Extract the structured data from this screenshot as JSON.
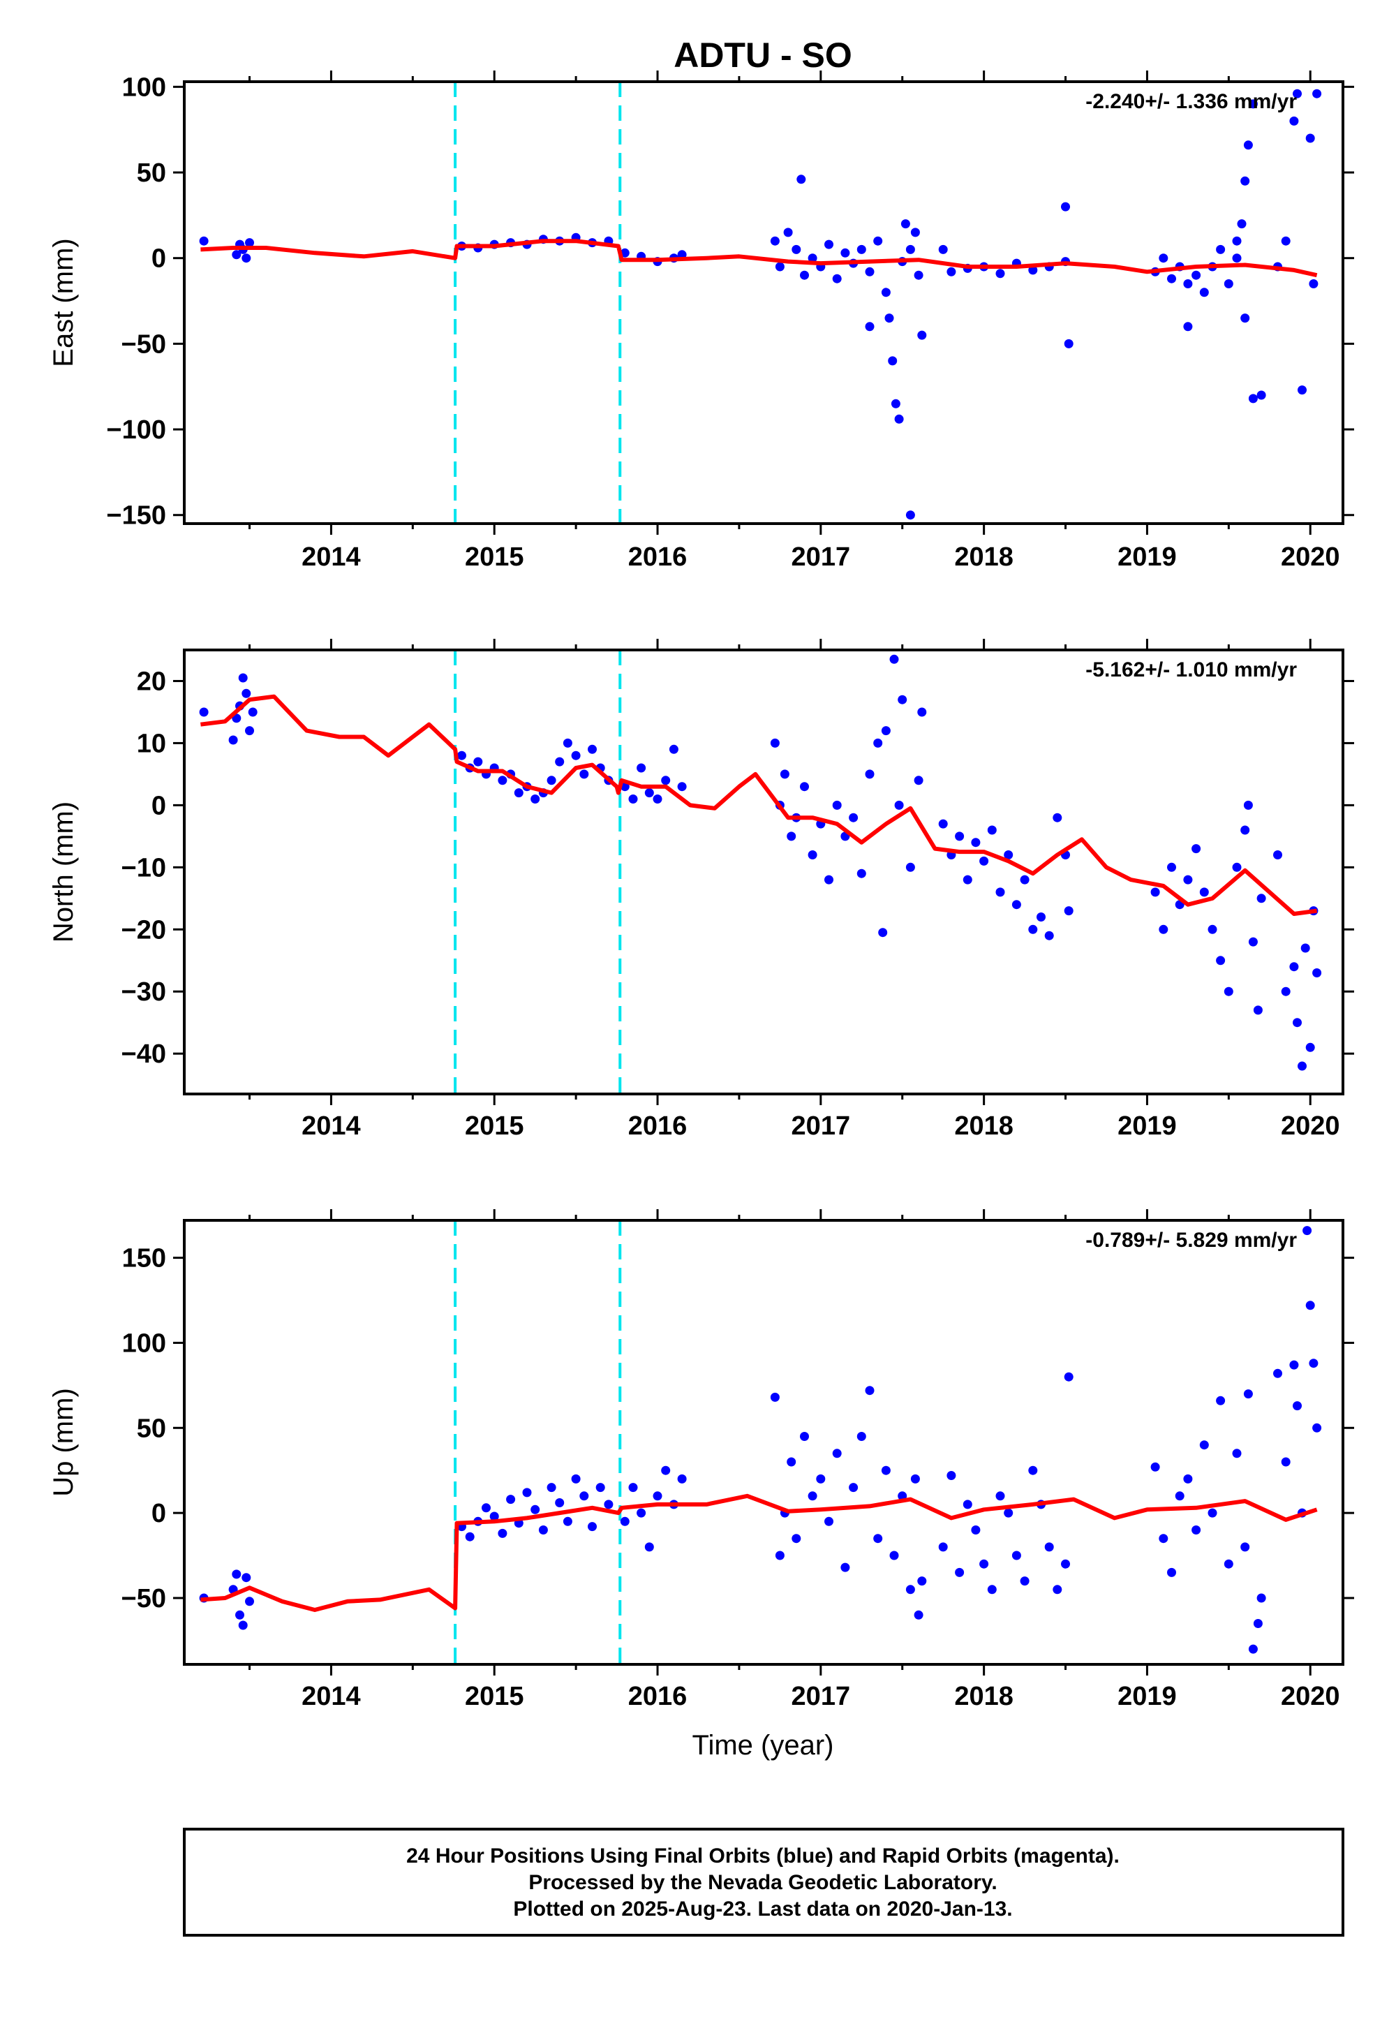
{
  "chart_data": {
    "type": "scatter",
    "title": "ADTU - SO",
    "xlabel": "Time (year)",
    "xlim": [
      2013.1,
      2020.2
    ],
    "x_ticks": [
      2014,
      2015,
      2016,
      2017,
      2018,
      2019,
      2020
    ],
    "x_tick_labels": [
      "2014",
      "2015",
      "2016",
      "2017",
      "2018",
      "2019",
      "2020"
    ],
    "equipment_changes": [
      2014.76,
      2015.77
    ],
    "colors": {
      "data_points": "#0000ff",
      "model_line": "#ff0000",
      "offset_lines": "#00e5ee"
    },
    "panels": [
      {
        "name": "east",
        "ylabel": "East (mm)",
        "ylim": [
          -155,
          103
        ],
        "y_ticks": [
          100,
          50,
          0,
          -50,
          -100,
          -150
        ],
        "y_tick_labels": [
          "100",
          "50",
          "0",
          "−50",
          "−100",
          "−150"
        ],
        "rate": "-2.240+/- 1.336 mm/yr",
        "model": {
          "x": [
            2013.2,
            2013.4,
            2013.6,
            2013.9,
            2014.2,
            2014.5,
            2014.76,
            2014.77,
            2015.0,
            2015.3,
            2015.5,
            2015.76,
            2015.78,
            2016.0,
            2016.3,
            2016.5,
            2016.8,
            2017.0,
            2017.3,
            2017.6,
            2017.9,
            2018.2,
            2018.5,
            2018.8,
            2019.0,
            2019.3,
            2019.6,
            2019.9,
            2020.04
          ],
          "y": [
            5,
            6,
            6,
            3,
            1,
            4,
            0,
            7,
            7,
            10,
            10,
            7,
            -1,
            -1,
            0,
            1,
            -2,
            -3,
            -2,
            -1,
            -5,
            -5,
            -3,
            -5,
            -8,
            -5,
            -4,
            -7,
            -10
          ]
        },
        "points": {
          "x": [
            2013.22,
            2013.42,
            2013.44,
            2013.46,
            2013.48,
            2013.5,
            2014.8,
            2014.9,
            2015.0,
            2015.1,
            2015.2,
            2015.3,
            2015.4,
            2015.5,
            2015.6,
            2015.7,
            2015.8,
            2015.9,
            2016.0,
            2016.1,
            2016.15,
            2016.72,
            2016.75,
            2016.8,
            2016.85,
            2016.9,
            2016.95,
            2017.0,
            2017.05,
            2017.1,
            2017.15,
            2017.2,
            2017.25,
            2017.3,
            2017.35,
            2017.4,
            2017.42,
            2017.44,
            2017.46,
            2017.48,
            2017.5,
            2017.52,
            2017.55,
            2017.58,
            2017.6,
            2017.62,
            2016.88,
            2017.3,
            2017.55,
            2017.75,
            2017.8,
            2017.9,
            2018.0,
            2018.1,
            2018.2,
            2018.3,
            2018.4,
            2018.5,
            2018.5,
            2018.52,
            2019.05,
            2019.1,
            2019.15,
            2019.2,
            2019.25,
            2019.3,
            2019.35,
            2019.4,
            2019.45,
            2019.5,
            2019.55,
            2019.6,
            2019.65,
            2019.25,
            2019.55,
            2019.58,
            2019.6,
            2019.62,
            2019.65,
            2019.7,
            2019.8,
            2019.85,
            2019.9,
            2019.92,
            2019.95,
            2020.0,
            2020.02,
            2020.04
          ],
          "y": [
            10,
            2,
            8,
            5,
            0,
            9,
            7,
            6,
            8,
            9,
            8,
            11,
            10,
            12,
            9,
            10,
            3,
            1,
            -2,
            0,
            2,
            10,
            -5,
            15,
            5,
            -10,
            0,
            -5,
            8,
            -12,
            3,
            -3,
            5,
            -8,
            10,
            -20,
            -35,
            -60,
            -85,
            -94,
            -2,
            20,
            -150,
            15,
            -10,
            -45,
            46,
            -40,
            5,
            5,
            -8,
            -6,
            -5,
            -9,
            -3,
            -7,
            -5,
            -2,
            30,
            -50,
            -8,
            0,
            -12,
            -5,
            -15,
            -10,
            -20,
            -5,
            5,
            -15,
            0,
            -35,
            -82,
            -40,
            10,
            20,
            45,
            66,
            90,
            -80,
            -5,
            10,
            80,
            96,
            -77,
            70,
            -15,
            96
          ]
        }
      },
      {
        "name": "north",
        "ylabel": "North (mm)",
        "ylim": [
          -46.5,
          25
        ],
        "y_ticks": [
          20,
          10,
          0,
          -10,
          -20,
          -30,
          -40
        ],
        "y_tick_labels": [
          "20",
          "10",
          "0",
          "−10",
          "−20",
          "−30",
          "−40"
        ],
        "rate": "-5.162+/- 1.010 mm/yr",
        "model": {
          "x": [
            2013.2,
            2013.35,
            2013.5,
            2013.65,
            2013.85,
            2014.05,
            2014.2,
            2014.35,
            2014.5,
            2014.6,
            2014.76,
            2014.77,
            2014.9,
            2015.05,
            2015.2,
            2015.35,
            2015.5,
            2015.6,
            2015.75,
            2015.76,
            2015.78,
            2015.9,
            2016.05,
            2016.2,
            2016.35,
            2016.5,
            2016.6,
            2016.8,
            2016.95,
            2017.1,
            2017.25,
            2017.4,
            2017.55,
            2017.7,
            2017.85,
            2018.0,
            2018.15,
            2018.3,
            2018.45,
            2018.6,
            2018.75,
            2018.9,
            2019.1,
            2019.25,
            2019.4,
            2019.6,
            2019.75,
            2019.9,
            2020.04
          ],
          "y": [
            13,
            13.5,
            17,
            17.5,
            12,
            11,
            11,
            8,
            11,
            13,
            9,
            7,
            5.5,
            5.5,
            3,
            2,
            6,
            6.5,
            3,
            2,
            4,
            3,
            3,
            0,
            -0.5,
            3,
            5,
            -2,
            -2,
            -3,
            -6,
            -3,
            -0.5,
            -7,
            -7.5,
            -7.5,
            -9,
            -11,
            -8,
            -5.5,
            -10,
            -12,
            -13,
            -16,
            -15,
            -10.5,
            -14,
            -17.5,
            -17
          ]
        },
        "points": {
          "x": [
            2013.22,
            2013.4,
            2013.42,
            2013.44,
            2013.46,
            2013.48,
            2013.5,
            2013.52,
            2014.8,
            2014.85,
            2014.9,
            2014.95,
            2015.0,
            2015.05,
            2015.1,
            2015.15,
            2015.2,
            2015.25,
            2015.3,
            2015.35,
            2015.4,
            2015.45,
            2015.5,
            2015.55,
            2015.6,
            2015.65,
            2015.7,
            2015.8,
            2015.85,
            2015.9,
            2015.95,
            2016.0,
            2016.05,
            2016.1,
            2016.15,
            2016.72,
            2016.75,
            2016.78,
            2016.82,
            2016.85,
            2016.9,
            2016.95,
            2017.0,
            2017.05,
            2017.1,
            2017.15,
            2017.2,
            2017.25,
            2017.3,
            2017.35,
            2017.38,
            2017.4,
            2017.45,
            2017.48,
            2017.5,
            2017.55,
            2017.6,
            2017.62,
            2017.75,
            2017.8,
            2017.85,
            2017.9,
            2017.95,
            2018.0,
            2018.05,
            2018.1,
            2018.15,
            2018.2,
            2018.25,
            2018.3,
            2018.35,
            2018.4,
            2018.45,
            2018.5,
            2018.52,
            2019.05,
            2019.1,
            2019.15,
            2019.2,
            2019.25,
            2019.3,
            2019.35,
            2019.4,
            2019.45,
            2019.5,
            2019.55,
            2019.6,
            2019.62,
            2019.65,
            2019.68,
            2019.7,
            2019.8,
            2019.85,
            2019.9,
            2019.92,
            2019.95,
            2019.97,
            2020.0,
            2020.02,
            2020.04
          ],
          "y": [
            15,
            10.5,
            14,
            16,
            20.5,
            18,
            12,
            15,
            8,
            6,
            7,
            5,
            6,
            4,
            5,
            2,
            3,
            1,
            2,
            4,
            7,
            10,
            8,
            5,
            9,
            6,
            4,
            3,
            1,
            6,
            2,
            1,
            4,
            9,
            3,
            10,
            0,
            5,
            -5,
            -2,
            3,
            -8,
            -3,
            -12,
            0,
            -5,
            -2,
            -11,
            5,
            10,
            -20.5,
            12,
            23.5,
            0,
            17,
            -10,
            4,
            15,
            -3,
            -8,
            -5,
            -12,
            -6,
            -9,
            -4,
            -14,
            -8,
            -16,
            -12,
            -20,
            -18,
            -21,
            -2,
            -8,
            -17,
            -14,
            -20,
            -10,
            -16,
            -12,
            -7,
            -14,
            -20,
            -25,
            -30,
            -10,
            -4,
            0,
            -22,
            -33,
            -15,
            -8,
            -30,
            -26,
            -35,
            -42,
            -23,
            -39,
            -17,
            -27
          ]
        }
      },
      {
        "name": "up",
        "ylabel": "Up (mm)",
        "ylim": [
          -89,
          172
        ],
        "y_ticks": [
          150,
          100,
          50,
          0,
          -50
        ],
        "y_tick_labels": [
          "150",
          "100",
          "50",
          "0",
          "−50"
        ],
        "rate": "-0.789+/- 5.829 mm/yr",
        "model": {
          "x": [
            2013.2,
            2013.35,
            2013.5,
            2013.7,
            2013.9,
            2014.1,
            2014.3,
            2014.5,
            2014.6,
            2014.76,
            2014.77,
            2015.0,
            2015.2,
            2015.4,
            2015.6,
            2015.76,
            2015.78,
            2016.0,
            2016.3,
            2016.55,
            2016.8,
            2017.0,
            2017.3,
            2017.55,
            2017.8,
            2018.0,
            2018.3,
            2018.55,
            2018.8,
            2019.0,
            2019.3,
            2019.6,
            2019.85,
            2020.04
          ],
          "y": [
            -51,
            -50,
            -44,
            -52,
            -57,
            -52,
            -51,
            -47,
            -45,
            -56,
            -6,
            -5,
            -3,
            0,
            3,
            0,
            3,
            5,
            5,
            10,
            1,
            2,
            4,
            8,
            -3,
            2,
            5,
            8,
            -3,
            2,
            3,
            7,
            -4,
            2
          ]
        },
        "points": {
          "x": [
            2013.22,
            2013.4,
            2013.42,
            2013.44,
            2013.46,
            2013.48,
            2013.5,
            2014.8,
            2014.85,
            2014.9,
            2014.95,
            2015.0,
            2015.05,
            2015.1,
            2015.15,
            2015.2,
            2015.25,
            2015.3,
            2015.35,
            2015.4,
            2015.45,
            2015.5,
            2015.55,
            2015.6,
            2015.65,
            2015.7,
            2015.8,
            2015.85,
            2015.9,
            2015.95,
            2016.0,
            2016.05,
            2016.1,
            2016.15,
            2016.72,
            2016.75,
            2016.78,
            2016.82,
            2016.85,
            2016.9,
            2016.95,
            2017.0,
            2017.05,
            2017.1,
            2017.15,
            2017.2,
            2017.25,
            2017.3,
            2017.35,
            2017.4,
            2017.45,
            2017.5,
            2017.55,
            2017.58,
            2017.6,
            2017.62,
            2017.75,
            2017.8,
            2017.85,
            2017.9,
            2017.95,
            2018.0,
            2018.05,
            2018.1,
            2018.15,
            2018.2,
            2018.25,
            2018.3,
            2018.35,
            2018.4,
            2018.45,
            2018.5,
            2018.52,
            2019.05,
            2019.1,
            2019.15,
            2019.2,
            2019.25,
            2019.3,
            2019.35,
            2019.4,
            2019.45,
            2019.5,
            2019.55,
            2019.6,
            2019.62,
            2019.65,
            2019.68,
            2019.7,
            2019.8,
            2019.85,
            2019.9,
            2019.92,
            2019.95,
            2019.98,
            2020.0,
            2020.02,
            2020.04
          ],
          "y": [
            -50,
            -45,
            -36,
            -60,
            -66,
            -38,
            -52,
            -8,
            -14,
            -5,
            3,
            -2,
            -12,
            8,
            -6,
            12,
            2,
            -10,
            15,
            6,
            -5,
            20,
            10,
            -8,
            15,
            5,
            -5,
            15,
            0,
            -20,
            10,
            25,
            5,
            20,
            68,
            -25,
            0,
            30,
            -15,
            45,
            10,
            20,
            -5,
            35,
            -32,
            15,
            45,
            72,
            -15,
            25,
            -25,
            10,
            -45,
            20,
            -60,
            -40,
            -20,
            22,
            -35,
            5,
            -10,
            -30,
            -45,
            10,
            0,
            -25,
            -40,
            25,
            5,
            -20,
            -45,
            -30,
            80,
            27,
            -15,
            -35,
            10,
            20,
            -10,
            40,
            0,
            66,
            -30,
            35,
            -20,
            70,
            -80,
            -65,
            -50,
            82,
            30,
            87,
            63,
            0,
            166,
            122,
            88,
            50
          ]
        }
      }
    ],
    "footer": {
      "line1": "24 Hour Positions Using Final Orbits (blue) and Rapid Orbits (magenta).",
      "line2": "Processed by the Nevada Geodetic Laboratory.",
      "line3": "Plotted on 2025-Aug-23. Last data on 2020-Jan-13."
    }
  }
}
